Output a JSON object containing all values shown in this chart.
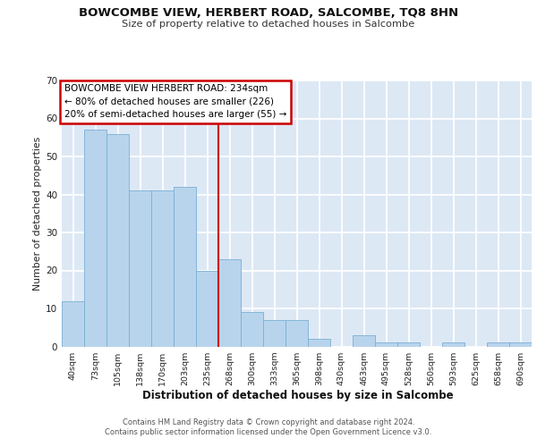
{
  "title": "BOWCOMBE VIEW, HERBERT ROAD, SALCOMBE, TQ8 8HN",
  "subtitle": "Size of property relative to detached houses in Salcombe",
  "xlabel": "Distribution of detached houses by size in Salcombe",
  "ylabel": "Number of detached properties",
  "bar_values": [
    12,
    57,
    56,
    41,
    41,
    42,
    20,
    23,
    9,
    7,
    7,
    2,
    0,
    3,
    1,
    1,
    0,
    1,
    0,
    1,
    1
  ],
  "x_labels": [
    "40sqm",
    "73sqm",
    "105sqm",
    "138sqm",
    "170sqm",
    "203sqm",
    "235sqm",
    "268sqm",
    "300sqm",
    "333sqm",
    "365sqm",
    "398sqm",
    "430sqm",
    "463sqm",
    "495sqm",
    "528sqm",
    "560sqm",
    "593sqm",
    "625sqm",
    "658sqm",
    "690sqm"
  ],
  "bar_color": "#b8d4ec",
  "bar_edge_color": "#7aafd4",
  "background_color": "#dde8f5",
  "grid_color": "#ffffff",
  "vline_x": 6.5,
  "vline_color": "#cc0000",
  "annotation_title": "BOWCOMBE VIEW HERBERT ROAD: 234sqm",
  "annotation_line1": "← 80% of detached houses are smaller (226)",
  "annotation_line2": "20% of semi-detached houses are larger (55) →",
  "annotation_box_color": "#ffffff",
  "annotation_box_edge_color": "#cc0000",
  "ylim": [
    0,
    70
  ],
  "yticks": [
    0,
    10,
    20,
    30,
    40,
    50,
    60,
    70
  ],
  "footer_line1": "Contains HM Land Registry data © Crown copyright and database right 2024.",
  "footer_line2": "Contains public sector information licensed under the Open Government Licence v3.0."
}
